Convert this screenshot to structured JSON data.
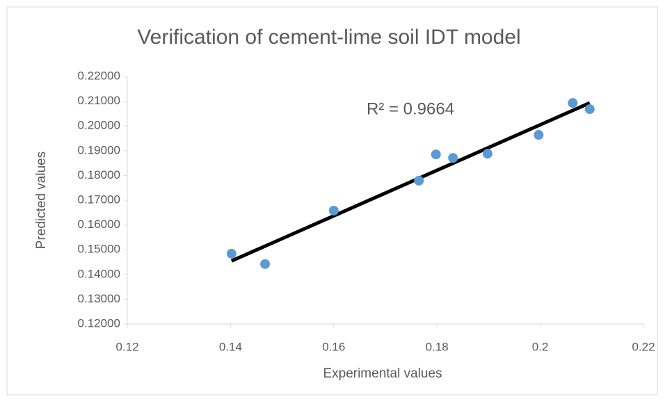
{
  "chart_data": {
    "type": "scatter",
    "title": "Verification of cement-lime soil IDT model",
    "x_label": "Experimental values",
    "y_label": "Predicted values",
    "annotation": "R² = 0.9664",
    "x": [
      0.1402,
      0.1467,
      0.16,
      0.1765,
      0.1798,
      0.1831,
      0.1898,
      0.1997,
      0.2063,
      0.2096
    ],
    "series": [
      {
        "name": "Predicted values",
        "color": "#5b9bd5",
        "values": [
          0.1484,
          0.1442,
          0.1658,
          0.1779,
          0.1885,
          0.1871,
          0.1888,
          0.1964,
          0.2093,
          0.2068
        ]
      }
    ],
    "trendline": {
      "type": "linear",
      "color": "#000000"
    },
    "xlim": [
      0.12,
      0.22
    ],
    "xticks": [
      0.12,
      0.14,
      0.16,
      0.18,
      0.2,
      0.22
    ],
    "ylim": [
      0.12,
      0.22
    ],
    "yticks": [
      {
        "value": 0.12,
        "label": "0.12000"
      },
      {
        "value": 0.13,
        "label": "0.13000"
      },
      {
        "value": 0.14,
        "label": "0.14000"
      },
      {
        "value": 0.15,
        "label": "0.15000"
      },
      {
        "value": 0.16,
        "label": "0.16000"
      },
      {
        "value": 0.17,
        "label": "0.17000"
      },
      {
        "value": 0.18,
        "label": "0.18000"
      },
      {
        "value": 0.19,
        "label": "0.19000"
      },
      {
        "value": 0.2,
        "label": "0.20000"
      },
      {
        "value": 0.21,
        "label": "0.21000"
      },
      {
        "value": 0.22,
        "label": "0.22000"
      }
    ],
    "grid": false
  }
}
